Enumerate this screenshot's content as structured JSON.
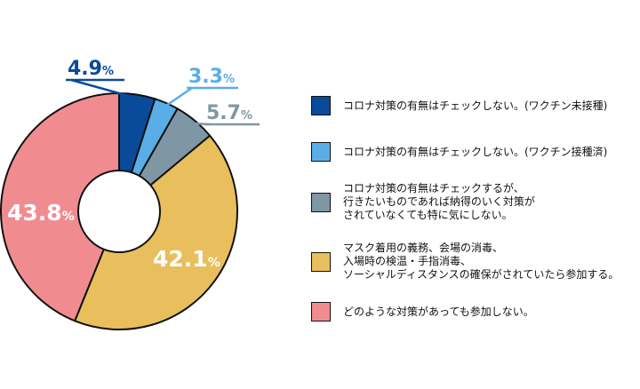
{
  "chart_data": {
    "type": "pie",
    "subtype": "donut",
    "unit": "%",
    "categories": [
      "コロナ対策の有無はチェックしない。(ワクチン未接種)",
      "コロナ対策の有無はチェックしない。(ワクチン接種済)",
      "コロナ対策の有無はチェックするが、\n行きたいものであれば納得のいく対策が\nされていなくても特に気にしない。",
      "マスク着用の義務、会場の消毒、\n入場時の検温・手指消毒、\nソーシャルディスタンスの確保がされていたら参加する。",
      "どのような対策があっても参加しない。"
    ],
    "values": [
      4.9,
      3.3,
      5.7,
      42.1,
      43.8
    ],
    "labels": [
      "4.9",
      "3.3",
      "5.7",
      "42.1",
      "43.8"
    ],
    "colors": [
      "#0a4a9a",
      "#5aaee8",
      "#7f97a4",
      "#e8bf5c",
      "#f08c8f"
    ],
    "legend_position": "right"
  }
}
